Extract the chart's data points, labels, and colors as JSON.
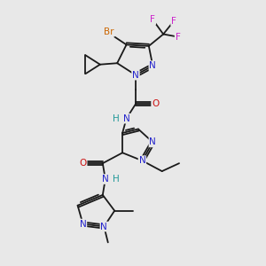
{
  "background_color": "#e8e8e8",
  "bond_color": "#1a1a1a",
  "atom_colors": {
    "N": "#2222cc",
    "O": "#cc1111",
    "Br": "#cc6600",
    "F": "#cc22cc",
    "H": "#229999",
    "C": "#1a1a1a"
  },
  "figsize": [
    3.0,
    3.0
  ],
  "dpi": 100
}
